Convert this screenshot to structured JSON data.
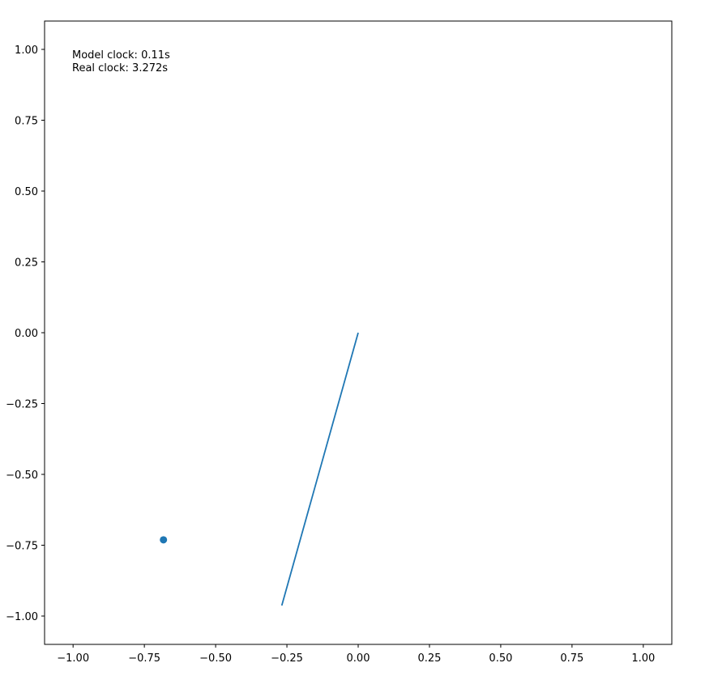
{
  "chart_data": {
    "type": "line",
    "title": "",
    "xlabel": "",
    "ylabel": "",
    "xlim": [
      -1.1,
      1.1
    ],
    "ylim": [
      -1.1,
      1.1
    ],
    "grid": false,
    "x_ticks": [
      -1.0,
      -0.75,
      -0.5,
      -0.25,
      0.0,
      0.25,
      0.5,
      0.75,
      1.0
    ],
    "x_tick_labels": [
      "−1.00",
      "−0.75",
      "−0.50",
      "−0.25",
      "0.00",
      "0.25",
      "0.50",
      "0.75",
      "1.00"
    ],
    "y_ticks": [
      1.0,
      0.75,
      0.5,
      0.25,
      0.0,
      -0.25,
      -0.5,
      -0.75,
      -1.0
    ],
    "y_tick_labels": [
      "1.00",
      "0.75",
      "0.50",
      "0.25",
      "0.00",
      "−0.25",
      "−0.50",
      "−0.75",
      "−1.00"
    ],
    "series": [
      {
        "type": "line",
        "color": "#1f77b4",
        "x": [
          0.0,
          -0.268
        ],
        "y": [
          0.0,
          -0.963
        ]
      },
      {
        "type": "scatter",
        "color": "#1f77b4",
        "x": [
          -0.683
        ],
        "y": [
          -0.731
        ]
      }
    ],
    "annotations": [
      "Model clock: 0.11s",
      "Real clock: 3.272s"
    ]
  }
}
